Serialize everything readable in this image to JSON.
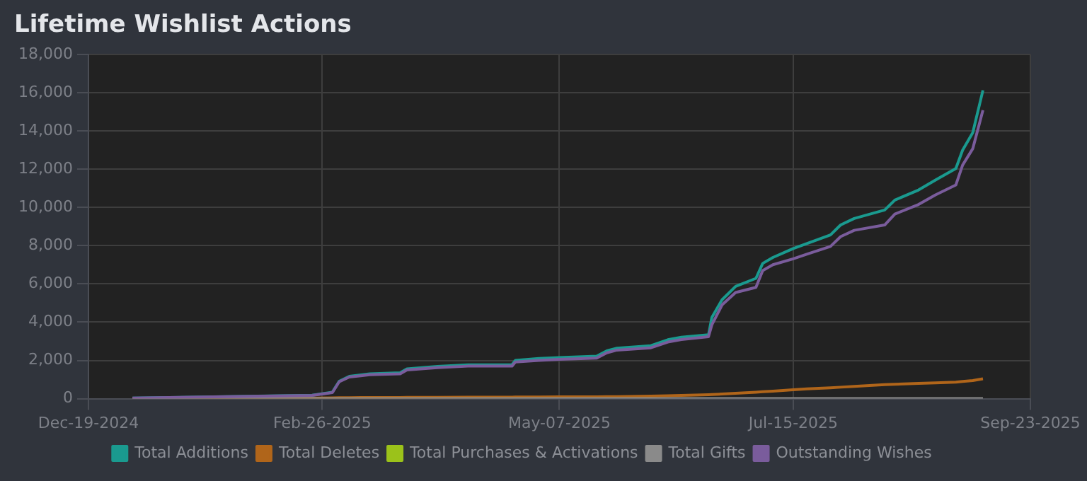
{
  "chart_data": {
    "type": "line",
    "title": "Lifetime Wishlist Actions",
    "x": [
      "2025-01-01",
      "2025-02-23",
      "2025-03-01",
      "2025-03-03",
      "2025-03-06",
      "2025-03-12",
      "2025-03-21",
      "2025-03-23",
      "2025-04-01",
      "2025-04-10",
      "2025-04-23",
      "2025-04-24",
      "2025-05-01",
      "2025-05-07",
      "2025-05-18",
      "2025-05-21",
      "2025-05-24",
      "2025-06-03",
      "2025-06-08",
      "2025-06-12",
      "2025-06-20",
      "2025-06-21",
      "2025-06-24",
      "2025-06-28",
      "2025-07-04",
      "2025-07-06",
      "2025-07-09",
      "2025-07-15",
      "2025-07-19",
      "2025-07-26",
      "2025-07-29",
      "2025-08-02",
      "2025-08-11",
      "2025-08-14",
      "2025-08-21",
      "2025-08-26",
      "2025-09-01",
      "2025-09-03",
      "2025-09-06",
      "2025-09-09"
    ],
    "series": [
      {
        "name": "Total Additions",
        "color": "#1a9a8f",
        "values": [
          30,
          180,
          340,
          910,
          1170,
          1300,
          1350,
          1560,
          1690,
          1770,
          1770,
          2000,
          2100,
          2150,
          2220,
          2500,
          2640,
          2770,
          3080,
          3210,
          3340,
          4250,
          5170,
          5870,
          6290,
          7070,
          7380,
          7850,
          8110,
          8560,
          9080,
          9420,
          9860,
          10380,
          10910,
          11430,
          12030,
          12990,
          13910,
          16120
        ]
      },
      {
        "name": "Total Deletes",
        "color": "#b0651a",
        "values": [
          10,
          30,
          40,
          50,
          50,
          60,
          60,
          70,
          70,
          80,
          80,
          90,
          90,
          100,
          100,
          110,
          110,
          130,
          150,
          170,
          210,
          215,
          240,
          280,
          340,
          360,
          390,
          470,
          510,
          570,
          600,
          640,
          730,
          750,
          800,
          830,
          860,
          900,
          950,
          1040
        ]
      },
      {
        "name": "Total Purchases & Activations",
        "color": "#9bc21a",
        "values": [
          null,
          null,
          null,
          null,
          null,
          null,
          null,
          null,
          null,
          null,
          null,
          null,
          null,
          null,
          null,
          null,
          null,
          null,
          null,
          null,
          null,
          null,
          null,
          null,
          null,
          null,
          null,
          null,
          null,
          null,
          null,
          null,
          null,
          null,
          null,
          null,
          null,
          null,
          null,
          null
        ]
      },
      {
        "name": "Total Gifts",
        "color": "#8a8a8a",
        "values": [
          0,
          0,
          0,
          0,
          0,
          0,
          0,
          0,
          0,
          0,
          0,
          0,
          0,
          0,
          0,
          0,
          0,
          0,
          0,
          0,
          0,
          0,
          0,
          0,
          0,
          0,
          0,
          0,
          0,
          0,
          0,
          0,
          0,
          0,
          0,
          0,
          0,
          0,
          0,
          0
        ]
      },
      {
        "name": "Outstanding Wishes",
        "color": "#7a5c9c",
        "values": [
          30,
          170,
          320,
          880,
          1130,
          1250,
          1300,
          1500,
          1620,
          1700,
          1700,
          1920,
          2000,
          2060,
          2120,
          2400,
          2540,
          2660,
          2960,
          3090,
          3240,
          3860,
          4900,
          5550,
          5820,
          6700,
          7000,
          7310,
          7550,
          7960,
          8470,
          8800,
          9080,
          9650,
          10150,
          10650,
          11170,
          12210,
          13070,
          15080
        ]
      }
    ],
    "xlim": [
      "2024-12-19",
      "2025-09-23"
    ],
    "xticks": [
      {
        "value": "2024-12-19",
        "label": "Dec-19-2024"
      },
      {
        "value": "2025-02-26",
        "label": "Feb-26-2025"
      },
      {
        "value": "2025-05-07",
        "label": "May-07-2025"
      },
      {
        "value": "2025-07-15",
        "label": "Jul-15-2025"
      },
      {
        "value": "2025-09-23",
        "label": "Sep-23-2025"
      }
    ],
    "ylim": [
      0,
      18000
    ],
    "yticks": [
      0,
      {
        "value": 2000,
        "label": "2,000"
      },
      {
        "value": 4000,
        "label": "4,000"
      },
      {
        "value": 6000,
        "label": "6,000"
      },
      {
        "value": 8000,
        "label": "8,000"
      },
      {
        "value": 10000,
        "label": "10,000"
      },
      {
        "value": 12000,
        "label": "12,000"
      },
      {
        "value": 14000,
        "label": "14,000"
      },
      {
        "value": 16000,
        "label": "16,000"
      },
      {
        "value": 18000,
        "label": "18,000"
      }
    ],
    "grid": true,
    "legend": "bottom",
    "marker": "none",
    "line_style": "solid"
  }
}
